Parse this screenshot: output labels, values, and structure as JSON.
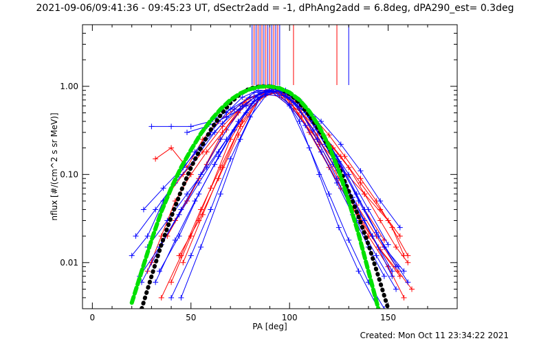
{
  "chart_data": {
    "type": "line",
    "title": "2021-09-06/09:41:36 - 09:45:23 UT, dSectr2add = -1, dPhAng2add = 6.8deg, dPA290_est=  0.3deg",
    "xlabel": "PA [deg]",
    "ylabel": "nflux [#/(cm^2 s sr MeV)]",
    "xlim": [
      -5,
      185
    ],
    "ylim": [
      0.003,
      5.0
    ],
    "yscale": "log",
    "x_ticks": [
      0,
      50,
      100,
      150
    ],
    "x_tick_labels": [
      "0",
      "50",
      "100",
      "150"
    ],
    "y_ticks": [
      0.01,
      0.1,
      1.0
    ],
    "y_tick_labels": [
      "0.01",
      "0.10",
      "1.00"
    ],
    "grid": false,
    "legend": "none",
    "created_label": "Created: Mon Oct 11 23:34:22 2021",
    "fit_curves": [
      {
        "color": "#000000",
        "style": "dotted-thick",
        "x": [
          25,
          30,
          35,
          40,
          45,
          50,
          55,
          60,
          65,
          70,
          75,
          80,
          85,
          90,
          95,
          100,
          105,
          110,
          115,
          120,
          125,
          130,
          135,
          140,
          145,
          150
        ],
        "y": [
          0.003,
          0.007,
          0.016,
          0.033,
          0.065,
          0.12,
          0.2,
          0.32,
          0.47,
          0.65,
          0.82,
          0.95,
          1.0,
          1.0,
          0.95,
          0.82,
          0.65,
          0.47,
          0.32,
          0.2,
          0.12,
          0.065,
          0.033,
          0.016,
          0.007,
          0.003
        ]
      },
      {
        "color": "#00e000",
        "style": "dashed-thick",
        "x": [
          20,
          25,
          30,
          35,
          40,
          45,
          50,
          55,
          60,
          65,
          70,
          75,
          80,
          85,
          90,
          95,
          100,
          105,
          110,
          115,
          120,
          125,
          130,
          135,
          140,
          145
        ],
        "y": [
          0.0035,
          0.008,
          0.018,
          0.038,
          0.07,
          0.12,
          0.19,
          0.29,
          0.41,
          0.55,
          0.7,
          0.83,
          0.93,
          0.99,
          1.0,
          0.95,
          0.85,
          0.7,
          0.52,
          0.35,
          0.21,
          0.11,
          0.05,
          0.021,
          0.008,
          0.003
        ]
      }
    ],
    "series": [
      {
        "color": "#ff0000",
        "x": [
          28,
          35,
          42,
          50,
          58,
          66,
          74,
          82,
          90,
          98,
          106,
          114,
          122,
          130,
          138,
          146,
          154,
          160
        ],
        "y": [
          0.008,
          0.02,
          0.05,
          0.1,
          0.18,
          0.3,
          0.5,
          0.75,
          0.9,
          0.85,
          0.6,
          0.35,
          0.2,
          0.12,
          0.06,
          0.03,
          0.015,
          0.01
        ]
      },
      {
        "color": "#ff0000",
        "x": [
          32,
          40,
          48,
          56,
          64,
          72,
          80,
          88,
          96,
          104,
          112,
          120,
          128,
          136,
          144,
          152,
          158
        ],
        "y": [
          0.15,
          0.2,
          0.12,
          0.25,
          0.4,
          0.55,
          0.75,
          0.88,
          0.8,
          0.65,
          0.45,
          0.28,
          0.16,
          0.09,
          0.05,
          0.025,
          0.012
        ]
      },
      {
        "color": "#ff0000",
        "x": [
          35,
          45,
          55,
          65,
          75,
          85,
          95,
          105,
          115,
          125,
          135,
          145,
          155,
          162
        ],
        "y": [
          0.004,
          0.012,
          0.04,
          0.12,
          0.35,
          0.72,
          0.9,
          0.55,
          0.22,
          0.09,
          0.035,
          0.015,
          0.008,
          0.005
        ]
      },
      {
        "color": "#ff0000",
        "x": [
          40,
          50,
          60,
          70,
          80,
          90,
          100,
          110,
          120,
          130,
          140,
          150,
          158
        ],
        "y": [
          0.006,
          0.02,
          0.07,
          0.25,
          0.6,
          0.95,
          0.7,
          0.3,
          0.12,
          0.05,
          0.02,
          0.009,
          0.004
        ]
      },
      {
        "color": "#ff0000",
        "x": [
          38,
          48,
          58,
          68,
          78,
          88,
          98,
          108,
          118,
          128,
          138,
          148
        ],
        "y": [
          0.02,
          0.05,
          0.13,
          0.32,
          0.65,
          0.9,
          0.82,
          0.5,
          0.24,
          0.1,
          0.04,
          0.018
        ]
      },
      {
        "color": "#ff0000",
        "x": [
          44,
          54,
          64,
          74,
          84,
          94,
          104,
          114,
          124,
          134,
          144,
          154
        ],
        "y": [
          0.012,
          0.03,
          0.09,
          0.28,
          0.7,
          0.92,
          0.6,
          0.28,
          0.11,
          0.045,
          0.02,
          0.009
        ]
      },
      {
        "color": "#ff0000",
        "x": [
          30,
          42,
          54,
          66,
          78,
          90,
          102,
          114,
          126,
          138,
          150,
          160
        ],
        "y": [
          0.01,
          0.03,
          0.09,
          0.3,
          0.7,
          0.9,
          0.55,
          0.25,
          0.12,
          0.06,
          0.03,
          0.012
        ]
      },
      {
        "color": "#ff0000",
        "x": [
          46,
          56,
          66,
          76,
          86,
          96,
          106,
          116,
          126,
          136,
          146,
          156
        ],
        "y": [
          0.01,
          0.035,
          0.12,
          0.4,
          0.8,
          0.85,
          0.45,
          0.18,
          0.07,
          0.03,
          0.014,
          0.007
        ]
      },
      {
        "color": "#ff0000",
        "x": [
          36,
          46,
          56,
          66,
          76,
          86,
          96,
          106,
          116,
          126,
          136,
          146,
          156
        ],
        "y": [
          0.05,
          0.1,
          0.18,
          0.35,
          0.6,
          0.85,
          0.75,
          0.5,
          0.3,
          0.16,
          0.08,
          0.04,
          0.02
        ]
      },
      {
        "color": "#0000ff",
        "x": [
          20,
          28,
          36,
          44,
          52,
          60,
          68,
          76,
          84,
          92,
          100,
          108,
          116,
          124,
          132,
          140,
          148
        ],
        "y": [
          0.012,
          0.02,
          0.05,
          0.1,
          0.18,
          0.3,
          0.5,
          0.75,
          0.9,
          0.88,
          0.62,
          0.36,
          0.18,
          0.08,
          0.035,
          0.015,
          0.007
        ]
      },
      {
        "color": "#0000ff",
        "x": [
          25,
          35,
          45,
          55,
          65,
          75,
          85,
          95,
          105,
          115,
          125,
          135,
          145,
          155,
          160
        ],
        "y": [
          0.006,
          0.016,
          0.04,
          0.1,
          0.25,
          0.55,
          0.85,
          0.95,
          0.7,
          0.35,
          0.14,
          0.05,
          0.02,
          0.009,
          0.006
        ]
      },
      {
        "color": "#0000ff",
        "x": [
          30,
          40,
          50,
          60,
          70,
          80,
          90,
          100,
          110,
          120,
          130,
          140,
          150
        ],
        "y": [
          0.35,
          0.35,
          0.35,
          0.4,
          0.55,
          0.75,
          0.9,
          0.75,
          0.45,
          0.22,
          0.1,
          0.04,
          0.016
        ]
      },
      {
        "color": "#0000ff",
        "x": [
          22,
          32,
          42,
          52,
          62,
          72,
          82,
          92,
          102,
          112,
          122,
          132,
          142,
          152
        ],
        "y": [
          0.02,
          0.04,
          0.08,
          0.15,
          0.3,
          0.55,
          0.85,
          0.95,
          0.65,
          0.32,
          0.13,
          0.05,
          0.02,
          0.008
        ]
      },
      {
        "color": "#0000ff",
        "x": [
          40,
          50,
          60,
          70,
          80,
          90,
          100,
          110,
          120,
          130,
          140,
          148
        ],
        "y": [
          0.004,
          0.012,
          0.04,
          0.15,
          0.45,
          0.9,
          0.6,
          0.2,
          0.06,
          0.018,
          0.006,
          0.003
        ]
      },
      {
        "color": "#0000ff",
        "x": [
          34,
          44,
          54,
          64,
          74,
          84,
          94,
          104,
          114,
          124,
          134,
          144,
          154
        ],
        "y": [
          0.008,
          0.02,
          0.06,
          0.16,
          0.4,
          0.8,
          0.95,
          0.6,
          0.25,
          0.09,
          0.03,
          0.012,
          0.005
        ]
      },
      {
        "color": "#0000ff",
        "x": [
          26,
          36,
          46,
          56,
          66,
          76,
          86,
          96,
          106,
          116,
          126,
          136,
          146,
          156
        ],
        "y": [
          0.04,
          0.07,
          0.12,
          0.22,
          0.38,
          0.6,
          0.85,
          0.9,
          0.65,
          0.4,
          0.22,
          0.11,
          0.05,
          0.025
        ]
      },
      {
        "color": "#0000ff",
        "x": [
          45,
          55,
          65,
          75,
          85,
          95,
          105,
          115,
          125,
          135,
          145
        ],
        "y": [
          0.004,
          0.015,
          0.06,
          0.25,
          0.75,
          0.9,
          0.4,
          0.1,
          0.025,
          0.008,
          0.003
        ]
      },
      {
        "color": "#0000ff",
        "x": [
          28,
          38,
          48,
          58,
          68,
          78,
          88,
          98,
          108,
          118,
          128,
          138,
          148,
          158
        ],
        "y": [
          0.015,
          0.03,
          0.06,
          0.12,
          0.25,
          0.5,
          0.85,
          0.9,
          0.55,
          0.25,
          0.1,
          0.04,
          0.015,
          0.008
        ]
      },
      {
        "color": "#0000ff",
        "x": [
          32,
          42,
          52,
          62,
          72,
          82,
          92,
          102,
          112,
          122,
          132,
          142,
          152
        ],
        "y": [
          0.006,
          0.018,
          0.05,
          0.13,
          0.32,
          0.68,
          0.95,
          0.75,
          0.38,
          0.15,
          0.055,
          0.02,
          0.007
        ]
      },
      {
        "color": "#0000ff",
        "x": [
          24,
          34,
          44,
          54,
          64,
          74,
          84,
          94,
          104,
          114,
          124,
          134,
          144,
          154
        ],
        "y": [
          0.007,
          0.015,
          0.035,
          0.08,
          0.18,
          0.4,
          0.75,
          0.92,
          0.7,
          0.38,
          0.16,
          0.06,
          0.022,
          0.009
        ]
      },
      {
        "color": "#0000ff",
        "x": [
          48,
          58,
          68,
          78,
          88,
          98,
          108,
          118,
          128,
          138
        ],
        "y": [
          0.3,
          0.35,
          0.45,
          0.6,
          0.8,
          0.78,
          0.5,
          0.22,
          0.08,
          0.03
        ]
      }
    ],
    "top_marks": [
      {
        "color": "#ff0000",
        "x": [
          82,
          84,
          86,
          88,
          90,
          92,
          94,
          102,
          124
        ]
      },
      {
        "color": "#0000ff",
        "x": [
          81,
          83,
          85,
          87,
          89,
          91,
          93,
          95,
          130
        ]
      }
    ]
  }
}
